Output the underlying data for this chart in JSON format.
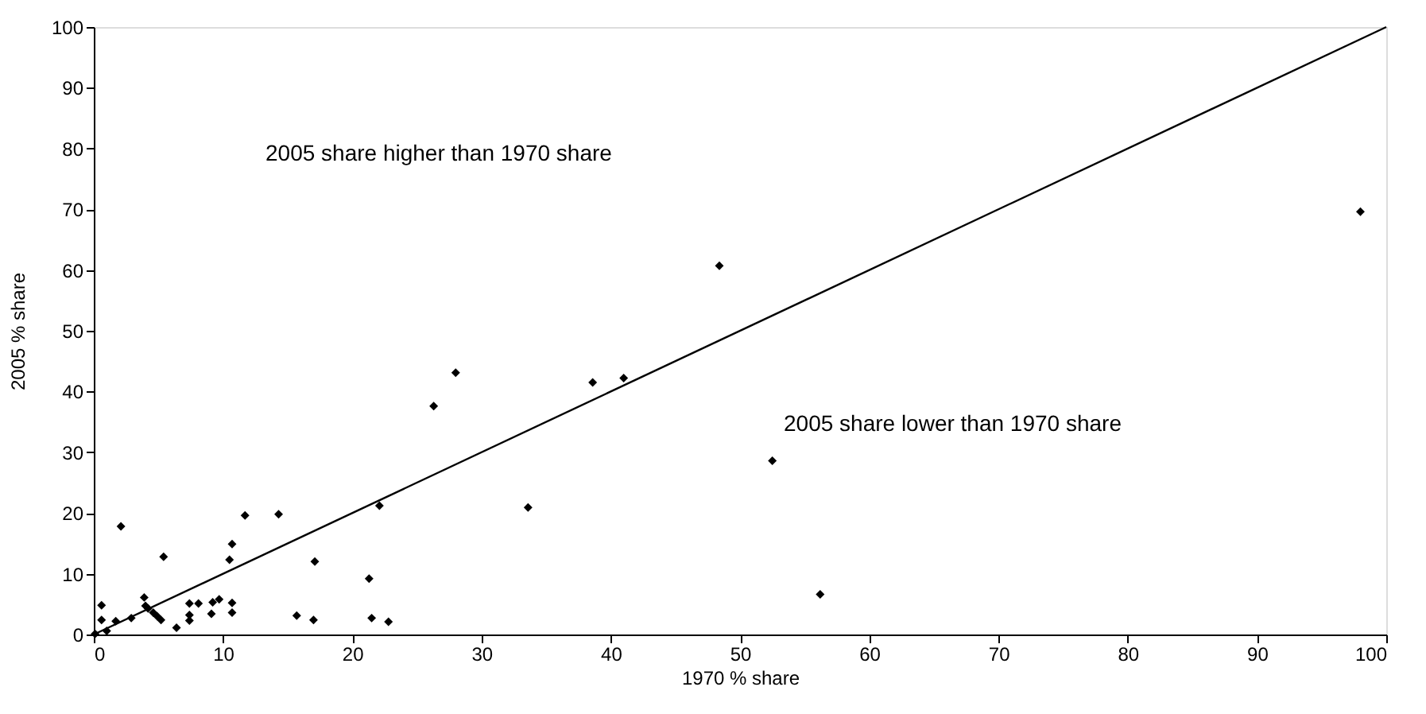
{
  "chart_data": {
    "type": "scatter",
    "xlabel": "1970 % share",
    "ylabel": "2005 % share",
    "xlim": [
      0,
      100
    ],
    "ylim": [
      0,
      100
    ],
    "xticks": [
      0,
      10,
      20,
      30,
      40,
      50,
      60,
      70,
      80,
      90,
      100
    ],
    "yticks": [
      0,
      10,
      20,
      30,
      40,
      50,
      60,
      70,
      80,
      90,
      100
    ],
    "grid": false,
    "annotations": [
      "2005 share higher than 1970 share",
      "2005 share lower than 1970 share"
    ],
    "series": [
      {
        "marker": "diamond",
        "color": "#000000",
        "x": [
          0.1,
          1.0,
          0.6,
          0.6,
          1.7,
          2.1,
          2.9,
          3.9,
          4.0,
          4.2,
          4.6,
          4.9,
          5.2,
          5.4,
          6.4,
          7.4,
          7.4,
          7.4,
          8.1,
          9.1,
          9.2,
          9.7,
          10.5,
          10.7,
          10.7,
          10.7,
          11.7,
          14.3,
          15.7,
          17.1,
          17.0,
          21.3,
          22.1,
          21.5,
          22.8,
          26.3,
          28.0,
          33.6,
          38.6,
          41.0,
          48.4,
          52.5,
          56.2,
          98.0
        ],
        "values": [
          0.1,
          0.6,
          4.8,
          2.4,
          2.2,
          17.8,
          2.7,
          6.1,
          4.7,
          4.3,
          3.6,
          3.0,
          2.4,
          12.8,
          1.1,
          5.1,
          3.2,
          2.3,
          5.1,
          3.4,
          5.3,
          5.8,
          12.3,
          14.9,
          5.2,
          3.6,
          19.6,
          19.8,
          3.1,
          12.0,
          2.4,
          9.2,
          21.2,
          2.7,
          2.1,
          37.6,
          43.1,
          20.9,
          41.5,
          42.2,
          60.7,
          28.6,
          6.6,
          69.6
        ]
      },
      {
        "type": "line",
        "color": "#000000",
        "line_style": "solid",
        "x": [
          0,
          100
        ],
        "values": [
          0,
          100
        ]
      }
    ]
  }
}
